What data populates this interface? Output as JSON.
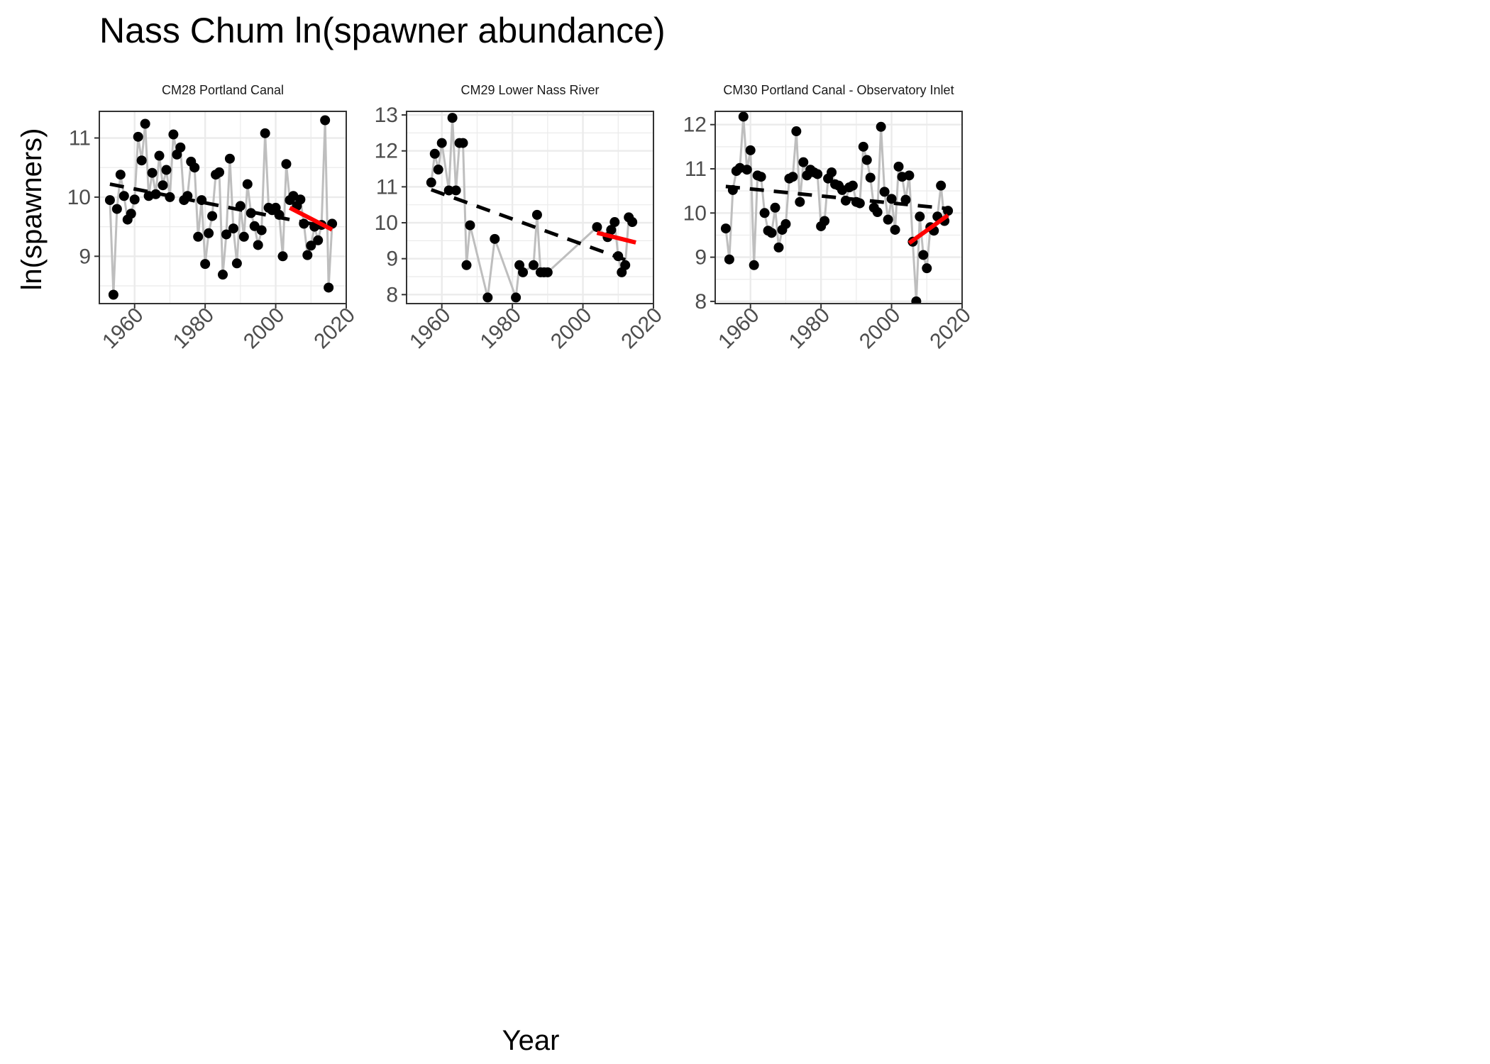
{
  "title": "Nass Chum ln(spawner abundance)",
  "xlabel": "Year",
  "ylabel": "ln(spawners)",
  "colors": {
    "points": "#000000",
    "series_line": "#bebebe",
    "long_term_trend": "#000000",
    "recent_trend": "#ff0000",
    "grid": "#ebebeb",
    "panel_border": "#333333",
    "tick_label": "#4d4d4d"
  },
  "chart_data": [
    {
      "type": "line",
      "panel_title": "CM28 Portland Canal",
      "x_ticks": [
        1960,
        1980,
        2000,
        2020
      ],
      "y_ticks": [
        9,
        10,
        11
      ],
      "xlim": [
        1950,
        2020
      ],
      "ylim": [
        8.2,
        11.45
      ],
      "grid": true,
      "series": [
        {
          "kind": "observed",
          "x": [
            1953,
            1954,
            1955,
            1956,
            1957,
            1958,
            1959,
            1960,
            1961,
            1962,
            1963,
            1964,
            1965,
            1966,
            1967,
            1968,
            1969,
            1970,
            1971,
            1972,
            1973,
            1974,
            1975,
            1976,
            1977,
            1978,
            1979,
            1980,
            1981,
            1982,
            1983,
            1984,
            1985,
            1986,
            1987,
            1988,
            1989,
            1990,
            1991,
            1992,
            1993,
            1994,
            1995,
            1996,
            1997,
            1998,
            1999,
            2000,
            2001,
            2002,
            2003,
            2004,
            2005,
            2006,
            2007,
            2008,
            2009,
            2010,
            2011,
            2012,
            2013,
            2014,
            2015,
            2016
          ],
          "y": [
            9.95,
            8.35,
            9.8,
            10.38,
            10.02,
            9.62,
            9.72,
            9.96,
            11.02,
            10.62,
            11.24,
            10.02,
            10.41,
            10.05,
            10.7,
            10.2,
            10.46,
            10.0,
            11.06,
            10.72,
            10.84,
            9.95,
            10.02,
            10.6,
            10.5,
            9.33,
            9.95,
            8.87,
            9.39,
            9.68,
            10.38,
            10.42,
            8.69,
            9.37,
            10.65,
            9.47,
            8.88,
            9.85,
            9.33,
            10.22,
            9.73,
            9.51,
            9.19,
            9.44,
            11.08,
            9.82,
            9.78,
            9.82,
            9.7,
            9.0,
            10.56,
            9.95,
            10.02,
            9.85,
            9.96,
            9.55,
            9.02,
            9.18,
            9.5,
            9.27,
            9.53,
            11.3,
            8.47,
            9.55
          ]
        },
        {
          "kind": "long-term trend",
          "x": [
            1953,
            2016
          ],
          "y": [
            10.22,
            9.48
          ]
        },
        {
          "kind": "recent trend",
          "x": [
            2004,
            2016
          ],
          "y": [
            9.82,
            9.45
          ]
        }
      ]
    },
    {
      "type": "line",
      "panel_title": "CM29 Lower Nass River",
      "x_ticks": [
        1960,
        1980,
        2000,
        2020
      ],
      "y_ticks": [
        8,
        9,
        10,
        11,
        12,
        13
      ],
      "xlim": [
        1950,
        2020
      ],
      "ylim": [
        7.75,
        13.1
      ],
      "grid": true,
      "series": [
        {
          "kind": "observed",
          "x": [
            1957,
            1958,
            1959,
            1960,
            1961,
            1962,
            1963,
            1964,
            1965,
            1966,
            1967,
            1968,
            1973,
            1975,
            1981,
            1982,
            1983,
            1986,
            1987,
            1988,
            1989,
            1990,
            2004,
            2007,
            2008,
            2009,
            2010,
            2011,
            2012,
            2013,
            2014
          ],
          "y": [
            11.12,
            11.92,
            11.48,
            12.22,
            null,
            10.9,
            12.92,
            10.9,
            12.22,
            12.22,
            8.82,
            9.93,
            7.92,
            9.55,
            7.92,
            8.82,
            8.62,
            8.82,
            10.22,
            8.62,
            8.62,
            8.62,
            9.88,
            9.6,
            9.8,
            10.02,
            9.07,
            8.62,
            8.82,
            10.15,
            10.02
          ],
          "note": ""
        },
        {
          "kind": "long-term trend",
          "x": [
            1957,
            2012
          ],
          "y": [
            10.92,
            8.97
          ]
        },
        {
          "kind": "recent trend",
          "x": [
            2004,
            2015
          ],
          "y": [
            9.72,
            9.45
          ]
        }
      ]
    },
    {
      "type": "line",
      "panel_title": "CM30 Portland Canal - Observatory Inlet",
      "x_ticks": [
        1960,
        1980,
        2000,
        2020
      ],
      "y_ticks": [
        8,
        9,
        10,
        11,
        12
      ],
      "xlim": [
        1950,
        2020
      ],
      "ylim": [
        7.95,
        12.3
      ],
      "grid": true,
      "series": [
        {
          "kind": "observed",
          "x": [
            1953,
            1954,
            1955,
            1956,
            1957,
            1958,
            1959,
            1960,
            1961,
            1962,
            1963,
            1964,
            1965,
            1966,
            1967,
            1968,
            1969,
            1970,
            1971,
            1972,
            1973,
            1974,
            1975,
            1976,
            1977,
            1978,
            1979,
            1980,
            1981,
            1982,
            1983,
            1984,
            1985,
            1986,
            1987,
            1988,
            1989,
            1990,
            1991,
            1992,
            1993,
            1994,
            1995,
            1996,
            1997,
            1998,
            1999,
            2000,
            2001,
            2002,
            2003,
            2004,
            2005,
            2006,
            2007,
            2008,
            2009,
            2010,
            2011,
            2012,
            2013,
            2014,
            2015,
            2016
          ],
          "y": [
            9.65,
            8.95,
            10.52,
            10.95,
            11.02,
            12.18,
            10.98,
            11.42,
            8.82,
            10.85,
            10.82,
            10.0,
            9.6,
            9.55,
            10.12,
            9.22,
            9.62,
            9.75,
            10.78,
            10.82,
            11.85,
            10.25,
            11.15,
            10.85,
            10.98,
            10.92,
            10.88,
            9.7,
            9.82,
            10.78,
            10.92,
            10.65,
            10.62,
            10.52,
            10.28,
            10.58,
            10.62,
            10.25,
            10.22,
            11.5,
            11.2,
            10.8,
            10.12,
            10.02,
            11.95,
            10.48,
            9.85,
            10.32,
            9.62,
            11.05,
            10.82,
            10.3,
            10.85,
            9.35,
            8.0,
            9.92,
            9.05,
            8.75,
            9.68,
            9.6,
            9.92,
            10.62,
            9.82,
            10.05
          ]
        },
        {
          "kind": "long-term trend",
          "x": [
            1953,
            2016
          ],
          "y": [
            10.6,
            10.1
          ]
        },
        {
          "kind": "recent trend",
          "x": [
            2005,
            2016
          ],
          "y": [
            9.32,
            9.95
          ]
        }
      ]
    }
  ]
}
